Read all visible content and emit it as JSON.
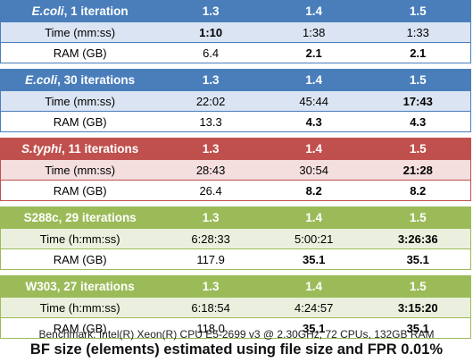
{
  "columns": [
    "1.3",
    "1.4",
    "1.5"
  ],
  "blocks": [
    {
      "theme": "blue",
      "title_em": "E.coli",
      "title_rest": ", 1 iteration",
      "rows": [
        {
          "label": "Time (mm:ss)",
          "values": [
            "1:10",
            "1:38",
            "1:33"
          ],
          "bold": [
            true,
            false,
            false
          ]
        },
        {
          "label": "RAM (GB)",
          "values": [
            "6.4",
            "2.1",
            "2.1"
          ],
          "bold": [
            false,
            true,
            true
          ]
        }
      ]
    },
    {
      "theme": "blue",
      "title_em": "E.coli",
      "title_rest": ", 30 iterations",
      "rows": [
        {
          "label": "Time (mm:ss)",
          "values": [
            "22:02",
            "45:44",
            "17:43"
          ],
          "bold": [
            false,
            false,
            true
          ]
        },
        {
          "label": "RAM (GB)",
          "values": [
            "13.3",
            "4.3",
            "4.3"
          ],
          "bold": [
            false,
            true,
            true
          ]
        }
      ]
    },
    {
      "theme": "red",
      "title_em": "S.typhi",
      "title_rest": ", 11 iterations",
      "rows": [
        {
          "label": "Time (mm:ss)",
          "values": [
            "28:43",
            "30:54",
            "21:28"
          ],
          "bold": [
            false,
            false,
            true
          ]
        },
        {
          "label": "RAM (GB)",
          "values": [
            "26.4",
            "8.2",
            "8.2"
          ],
          "bold": [
            false,
            true,
            true
          ]
        }
      ]
    },
    {
      "theme": "green",
      "title_em": "",
      "title_rest": "S288c, 29 iterations",
      "rows": [
        {
          "label": "Time (h:mm:ss)",
          "values": [
            "6:28:33",
            "5:00:21",
            "3:26:36"
          ],
          "bold": [
            false,
            false,
            true
          ]
        },
        {
          "label": "RAM (GB)",
          "values": [
            "117.9",
            "35.1",
            "35.1"
          ],
          "bold": [
            false,
            true,
            true
          ]
        }
      ]
    },
    {
      "theme": "green",
      "title_em": "",
      "title_rest": "W303, 27 iterations",
      "rows": [
        {
          "label": "Time (h:mm:ss)",
          "values": [
            "6:18:54",
            "4:24:57",
            "3:15:20"
          ],
          "bold": [
            false,
            false,
            true
          ]
        },
        {
          "label": "RAM (GB)",
          "values": [
            "118.0",
            "35.1",
            "35.1"
          ],
          "bold": [
            false,
            true,
            true
          ]
        }
      ]
    }
  ],
  "footer": {
    "benchmark": "Benchmark: Intel(R) Xeon(R) CPU E5-2699 v3 @ 2.30GHz, 72 CPUs, 132GB RAM",
    "note": "BF size (elements) estimated using file size and FPR 0.01%"
  },
  "colors": {
    "blue_header": "#4a7ebb",
    "red_header": "#c0504d",
    "green_header": "#9bbb59"
  }
}
